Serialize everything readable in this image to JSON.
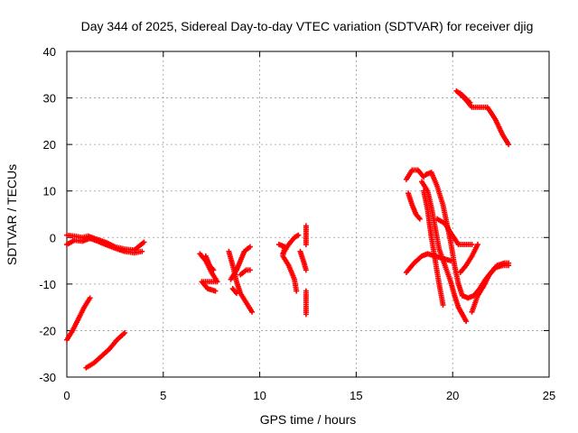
{
  "chart_data": {
    "type": "scatter",
    "title": "Day 344 of 2025, Sidereal Day-to-day VTEC variation (SDTVAR) for receiver djig",
    "xlabel": "GPS time / hours",
    "ylabel": "SDTVAR / TECUs",
    "xlim": [
      0,
      25
    ],
    "ylim": [
      -30,
      40
    ],
    "xticks": [
      0,
      5,
      10,
      15,
      20,
      25
    ],
    "yticks": [
      -30,
      -20,
      -10,
      0,
      10,
      20,
      30,
      40
    ],
    "grid": true,
    "marker": "+",
    "color": "#ff0000",
    "tracks": [
      [
        [
          0.0,
          -1.5
        ],
        [
          0.4,
          -0.6
        ],
        [
          0.8,
          -0.8
        ],
        [
          1.2,
          -0.2
        ],
        [
          1.6,
          -0.8
        ],
        [
          2.0,
          -1.5
        ],
        [
          2.5,
          -2.3
        ],
        [
          3.0,
          -3.0
        ],
        [
          3.5,
          -3.3
        ],
        [
          3.9,
          -3.0
        ]
      ],
      [
        [
          0.0,
          0.5
        ],
        [
          0.4,
          0.3
        ],
        [
          0.8,
          0.0
        ],
        [
          1.1,
          0.3
        ],
        [
          1.5,
          -0.3
        ],
        [
          2.0,
          -1.0
        ],
        [
          2.5,
          -2.0
        ],
        [
          3.0,
          -2.5
        ],
        [
          3.5,
          -2.7
        ],
        [
          4.0,
          -1.0
        ]
      ],
      [
        [
          0.0,
          -22.0
        ],
        [
          0.3,
          -20.0
        ],
        [
          0.6,
          -17.5
        ],
        [
          0.9,
          -15.0
        ],
        [
          1.2,
          -13.0
        ]
      ],
      [
        [
          1.0,
          -28.0
        ],
        [
          1.4,
          -27.0
        ],
        [
          1.8,
          -25.5
        ],
        [
          2.2,
          -24.0
        ],
        [
          2.6,
          -22.0
        ],
        [
          3.0,
          -20.5
        ]
      ],
      [
        [
          6.9,
          -3.5
        ],
        [
          7.2,
          -5.0
        ],
        [
          7.5,
          -7.5
        ],
        [
          7.8,
          -9.5
        ],
        [
          7.0,
          -9.5
        ],
        [
          7.3,
          -11.0
        ],
        [
          7.7,
          -11.5
        ]
      ],
      [
        [
          7.2,
          -4.0
        ],
        [
          7.4,
          -6.0
        ],
        [
          7.6,
          -7.0
        ]
      ],
      [
        [
          8.4,
          -3.0
        ],
        [
          8.6,
          -6.0
        ],
        [
          8.8,
          -9.5
        ],
        [
          9.0,
          -12.0
        ],
        [
          9.3,
          -14.0
        ],
        [
          9.6,
          -16.0
        ]
      ],
      [
        [
          8.5,
          -9.0
        ],
        [
          8.8,
          -7.0
        ],
        [
          9.0,
          -5.0
        ],
        [
          9.2,
          -3.0
        ],
        [
          9.5,
          -2.0
        ]
      ],
      [
        [
          9.0,
          -8.0
        ],
        [
          9.3,
          -7.0
        ],
        [
          9.5,
          -7.0
        ]
      ],
      [
        [
          8.6,
          -11.0
        ],
        [
          8.8,
          -12.0
        ]
      ],
      [
        [
          11.0,
          -1.5
        ],
        [
          11.3,
          -2.0
        ],
        [
          11.2,
          -4.0
        ],
        [
          11.5,
          -6.0
        ],
        [
          11.8,
          -9.0
        ],
        [
          11.9,
          -11.5
        ]
      ],
      [
        [
          11.2,
          -3.5
        ],
        [
          11.5,
          -1.5
        ],
        [
          11.8,
          0.0
        ],
        [
          12.0,
          0.5
        ]
      ],
      [
        [
          12.1,
          -3.0
        ],
        [
          12.3,
          -5.5
        ],
        [
          12.4,
          -7.0
        ]
      ],
      [
        [
          12.4,
          2.5
        ],
        [
          12.4,
          0.5
        ],
        [
          12.4,
          -1.5
        ]
      ],
      [
        [
          12.4,
          -11.5
        ],
        [
          12.4,
          -14.0
        ],
        [
          12.4,
          -16.5
        ]
      ],
      [
        [
          17.6,
          12.5
        ],
        [
          17.9,
          14.5
        ],
        [
          18.2,
          14.5
        ],
        [
          18.5,
          13.0
        ]
      ],
      [
        [
          17.7,
          9.5
        ],
        [
          17.9,
          7.0
        ],
        [
          18.1,
          5.0
        ],
        [
          18.3,
          4.0
        ]
      ],
      [
        [
          17.6,
          -7.5
        ],
        [
          18.0,
          -5.5
        ],
        [
          18.4,
          -4.0
        ],
        [
          18.7,
          -3.5
        ],
        [
          19.1,
          -4.0
        ],
        [
          19.5,
          -4.5
        ],
        [
          19.9,
          -5.0
        ]
      ],
      [
        [
          18.6,
          13.5
        ],
        [
          18.9,
          14.0
        ],
        [
          19.2,
          11.0
        ],
        [
          19.5,
          7.0
        ],
        [
          19.7,
          3.0
        ],
        [
          19.9,
          -1.0
        ],
        [
          20.1,
          -6.0
        ],
        [
          20.3,
          -10.0
        ],
        [
          20.5,
          -12.5
        ],
        [
          20.8,
          -13.0
        ],
        [
          21.1,
          -12.5
        ],
        [
          21.4,
          -11.0
        ],
        [
          21.7,
          -9.0
        ],
        [
          22.0,
          -7.5
        ],
        [
          22.3,
          -6.0
        ],
        [
          22.7,
          -5.5
        ],
        [
          22.9,
          -5.5
        ]
      ],
      [
        [
          18.4,
          12.0
        ],
        [
          18.7,
          10.0
        ],
        [
          18.9,
          6.5
        ],
        [
          19.1,
          2.0
        ],
        [
          19.3,
          -2.5
        ],
        [
          19.6,
          -6.0
        ],
        [
          19.9,
          -9.5
        ],
        [
          20.1,
          -12.5
        ],
        [
          20.3,
          -15.0
        ],
        [
          20.5,
          -16.5
        ],
        [
          20.7,
          -18.0
        ]
      ],
      [
        [
          18.5,
          10.0
        ],
        [
          18.7,
          6.0
        ],
        [
          18.9,
          0.0
        ],
        [
          19.1,
          -5.0
        ],
        [
          19.3,
          -10.0
        ],
        [
          19.5,
          -14.5
        ]
      ],
      [
        [
          19.2,
          4.0
        ],
        [
          19.6,
          3.0
        ],
        [
          19.9,
          1.0
        ],
        [
          20.3,
          -1.5
        ],
        [
          20.7,
          -1.5
        ],
        [
          21.0,
          -1.5
        ]
      ],
      [
        [
          20.4,
          -7.5
        ],
        [
          20.7,
          -6.0
        ],
        [
          21.0,
          -4.0
        ],
        [
          21.3,
          -1.5
        ]
      ],
      [
        [
          21.0,
          -16.0
        ],
        [
          21.3,
          -12.5
        ],
        [
          21.6,
          -10.5
        ],
        [
          21.9,
          -8.0
        ],
        [
          22.2,
          -6.5
        ],
        [
          22.6,
          -6.0
        ],
        [
          22.9,
          -6.0
        ]
      ],
      [
        [
          20.2,
          31.5
        ],
        [
          20.6,
          30.0
        ],
        [
          21.0,
          28.0
        ],
        [
          21.4,
          28.0
        ],
        [
          21.8,
          28.0
        ],
        [
          22.2,
          25.5
        ],
        [
          22.6,
          22.0
        ],
        [
          22.9,
          20.0
        ]
      ],
      [
        [
          20.4,
          31.0
        ],
        [
          20.9,
          29.0
        ]
      ]
    ]
  }
}
